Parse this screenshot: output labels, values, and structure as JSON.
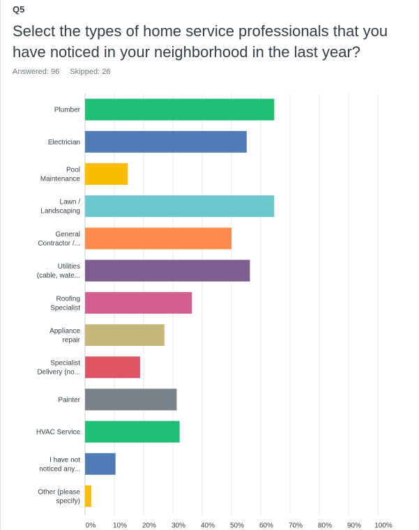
{
  "question": {
    "number": "Q5",
    "title": "Select the types of home service professionals that you have noticed in your neighborhood in the last year?",
    "answered": "Answered: 96",
    "skipped": "Skipped: 26"
  },
  "chart_data": {
    "type": "bar",
    "orientation": "horizontal",
    "categories": [
      [
        "Plumber"
      ],
      [
        "Electrician"
      ],
      [
        "Pool",
        "Maintenance"
      ],
      [
        "Lawn /",
        "Landscaping"
      ],
      [
        "General",
        "Contractor /..."
      ],
      [
        "Utilities",
        "(cable, wate..."
      ],
      [
        "Roofing",
        "Specialist"
      ],
      [
        "Appliance",
        "repair"
      ],
      [
        "Specialist",
        "Delivery (no..."
      ],
      [
        "Painter"
      ],
      [
        "HVAC Service"
      ],
      [
        "I have not",
        "noticed any..."
      ],
      [
        "Other (please",
        "specify)"
      ]
    ],
    "values": [
      64.6,
      55.2,
      14.6,
      64.6,
      50.0,
      56.3,
      36.5,
      27.1,
      18.8,
      31.3,
      32.3,
      10.4,
      2.1
    ],
    "colors": [
      "#21bf73",
      "#507cb6",
      "#f9be00",
      "#6bc8cd",
      "#ff8b4f",
      "#7d5e90",
      "#d25f90",
      "#c7b879",
      "#e05666",
      "#7a8387",
      "#21bf73",
      "#507cb6",
      "#f9be00"
    ],
    "xlim": [
      0,
      100
    ],
    "ticks": [
      "0%",
      "10%",
      "20%",
      "30%",
      "40%",
      "50%",
      "60%",
      "70%",
      "80%",
      "90%",
      "100%"
    ],
    "grid": true
  }
}
